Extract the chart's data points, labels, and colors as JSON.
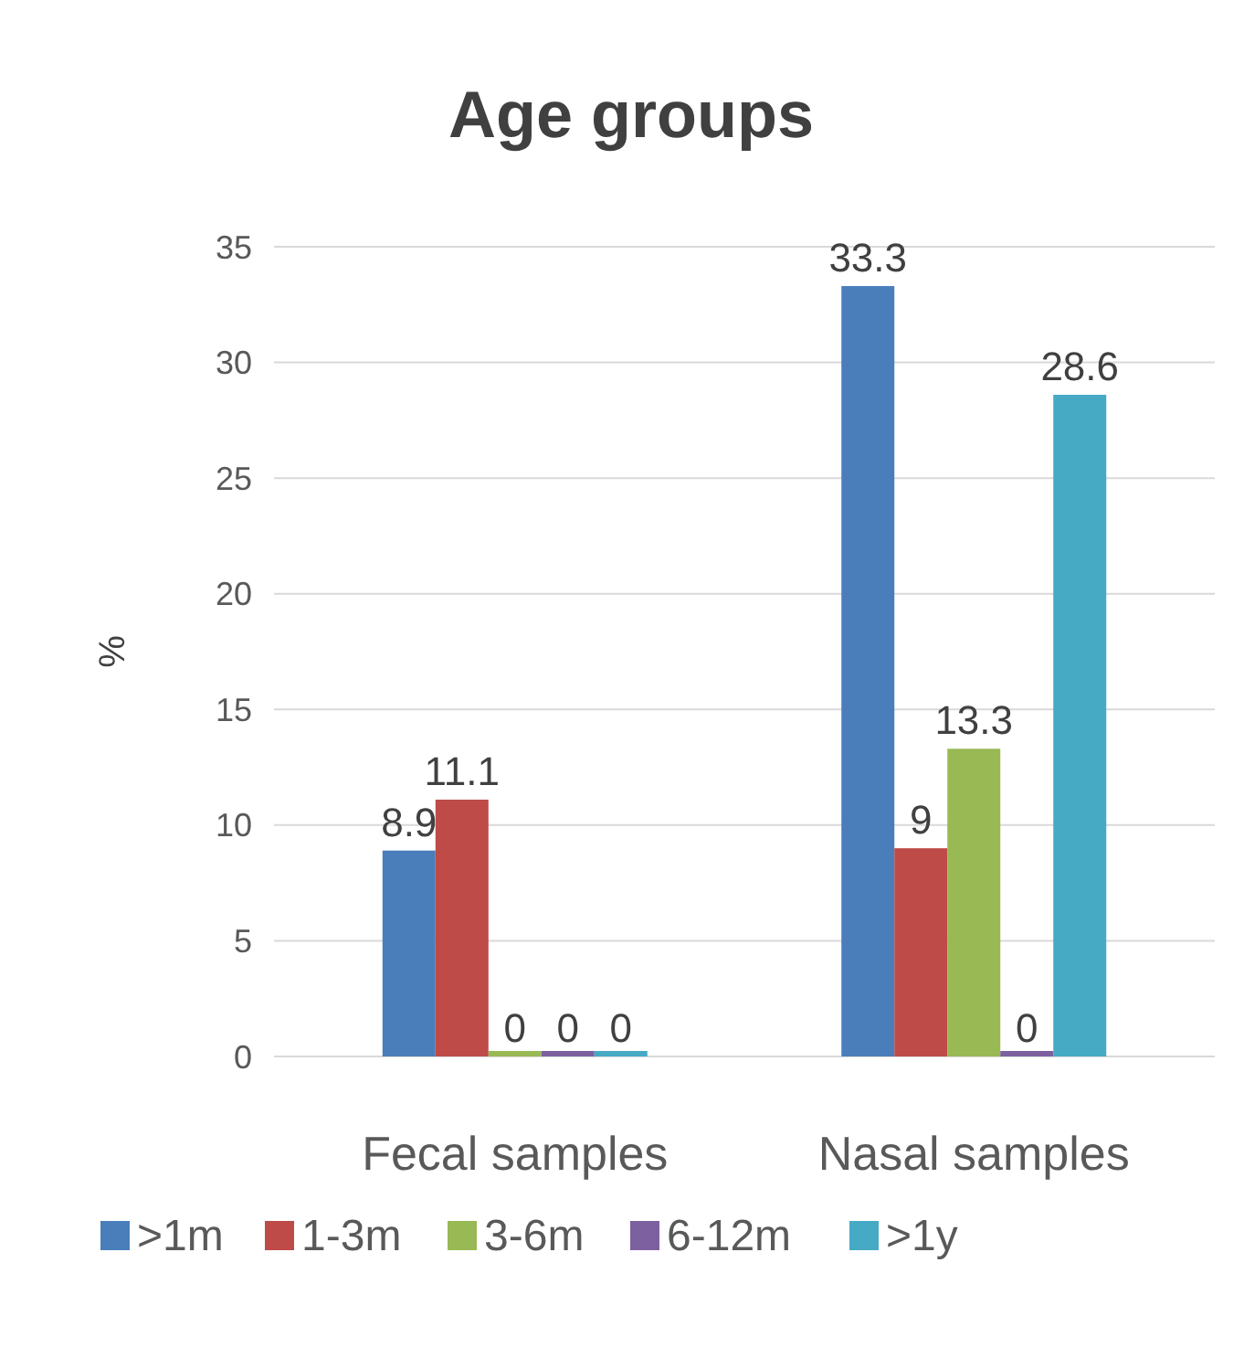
{
  "chart_data": {
    "type": "bar",
    "title": "Age groups",
    "ylabel": "%",
    "categories": [
      "Fecal samples",
      "Nasal samples"
    ],
    "series": [
      {
        "name": ">1m",
        "color": "#4a7ebb",
        "values": [
          8.9,
          33.3
        ]
      },
      {
        "name": "1-3m",
        "color": "#be4b48",
        "values": [
          11.1,
          9
        ]
      },
      {
        "name": "3-6m",
        "color": "#98b954",
        "values": [
          0,
          13.3
        ]
      },
      {
        "name": "6-12m",
        "color": "#7d60a0",
        "values": [
          0,
          0
        ]
      },
      {
        "name": ">1y",
        "color": "#46aac5",
        "values": [
          0,
          28.6
        ]
      }
    ],
    "ylim": [
      0,
      35
    ],
    "yticks": [
      0,
      5,
      10,
      15,
      20,
      25,
      30,
      35
    ],
    "grid": "y",
    "data_labels": true,
    "legend": "bottom"
  }
}
